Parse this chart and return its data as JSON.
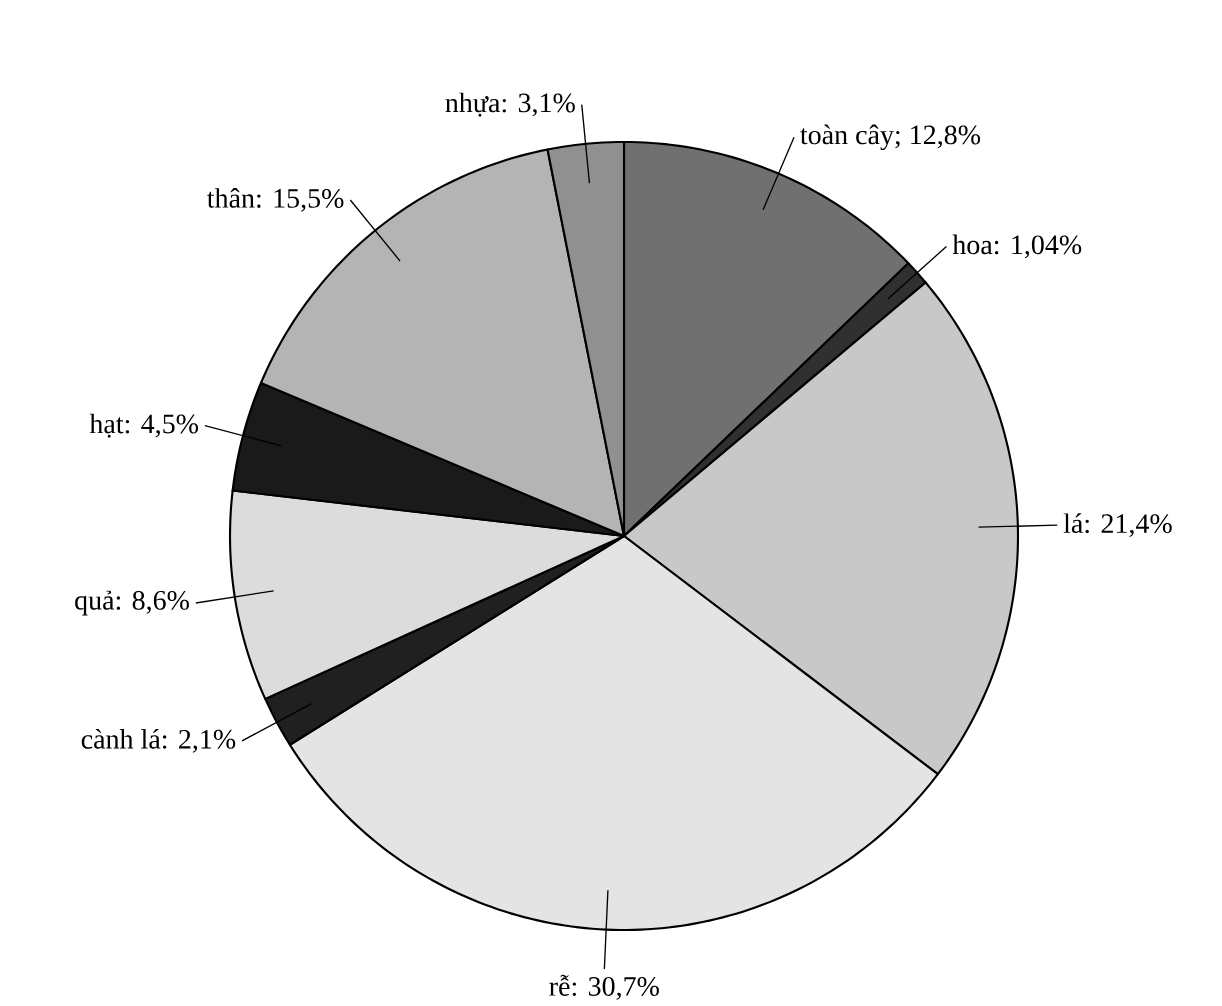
{
  "chart_data": {
    "type": "pie",
    "categories": [
      "toàn cây",
      "hoa",
      "lá",
      "rễ",
      "cành lá",
      "quả",
      "hạt",
      "thân",
      "nhựa"
    ],
    "values": [
      12.8,
      1.04,
      21.4,
      30.7,
      2.1,
      8.6,
      4.5,
      15.5,
      3.1
    ],
    "value_labels": [
      "; 12,8%",
      ": 1,04%",
      ": 21,4%",
      ": 30,7%",
      ": 2,1%",
      ": 8,6%",
      ": 4,5%",
      ": 15,5%",
      ": 3,1%"
    ],
    "colors": [
      "#707070",
      "#303030",
      "#c8c8c8",
      "#e4e4e4",
      "#202020",
      "#dcdcdc",
      "#1a1a1a",
      "#b4b4b4",
      "#909090"
    ]
  }
}
